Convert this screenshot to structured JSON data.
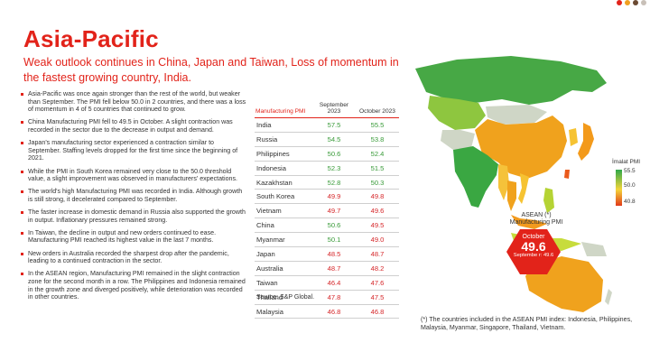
{
  "colors": {
    "accent": "#e2231a",
    "green_value": "#3a9b3a",
    "red_value": "#d6282b",
    "dots": [
      "#e2231a",
      "#f0a020",
      "#6b4a32",
      "#c8c0b8"
    ]
  },
  "title": "Asia-Pacific",
  "subtitle": "Weak outlook continues in China, Japan and Taiwan, Loss of momentum in the fastest growing country, India.",
  "bullets": [
    "Asia-Pacific was once again stronger than the rest of the world, but weaker than September. The PMI fell below 50.0 in 2 countries, and there was a loss of momentum in 4 of 5 countries that continued to grow.",
    "China Manufacturing PMI fell to 49.5 in October. A slight contraction was recorded in the sector due to the decrease in output and demand.",
    "Japan's manufacturing sector experienced a contraction similar to September. Staffing levels dropped for the first time since the beginning of 2021.",
    "While the PMI in South Korea remained very close to the 50.0 threshold value, a slight improvement was observed in manufacturers' expectations.",
    "The world's high Manufacturing PMI was recorded in India. Although growth is still strong, it decelerated compared to September.",
    "The faster increase in domestic demand in Russia also supported the growth in output. Inflationary pressures remained strong.",
    "In Taiwan, the decline in output and new orders continued to ease. Manufacturing PMI reached its highest value in the last 7 months.",
    "New orders in Australia recorded the sharpest drop after the pandemic, leading to a continued contraction in the sector.",
    "In the ASEAN region, Manufacturing PMI remained in the slight contraction zone for the second month in a row. The Philippines and Indonesia remained in the growth zone and diverged positively, while deterioration was recorded in other countries."
  ],
  "table": {
    "label_header": "Manufacturing PMI",
    "col1_header": "September 2023",
    "col2_header": "October 2023",
    "rows": [
      {
        "country": "India",
        "sep": "57.5",
        "oct": "55.5",
        "sep_color": "green",
        "oct_color": "green"
      },
      {
        "country": "Russia",
        "sep": "54.5",
        "oct": "53.8",
        "sep_color": "green",
        "oct_color": "green"
      },
      {
        "country": "Philippines",
        "sep": "50.6",
        "oct": "52.4",
        "sep_color": "green",
        "oct_color": "green"
      },
      {
        "country": "Indonesia",
        "sep": "52.3",
        "oct": "51.5",
        "sep_color": "green",
        "oct_color": "green"
      },
      {
        "country": "Kazakhstan",
        "sep": "52.8",
        "oct": "50.3",
        "sep_color": "green",
        "oct_color": "green"
      },
      {
        "country": "South Korea",
        "sep": "49.9",
        "oct": "49.8",
        "sep_color": "red",
        "oct_color": "red"
      },
      {
        "country": "Vietnam",
        "sep": "49.7",
        "oct": "49.6",
        "sep_color": "red",
        "oct_color": "red"
      },
      {
        "country": "China",
        "sep": "50.6",
        "oct": "49.5",
        "sep_color": "green",
        "oct_color": "red"
      },
      {
        "country": "Myanmar",
        "sep": "50.1",
        "oct": "49.0",
        "sep_color": "green",
        "oct_color": "red"
      },
      {
        "country": "Japan",
        "sep": "48.5",
        "oct": "48.7",
        "sep_color": "red",
        "oct_color": "red"
      },
      {
        "country": "Australia",
        "sep": "48.7",
        "oct": "48.2",
        "sep_color": "red",
        "oct_color": "red"
      },
      {
        "country": "Taiwan",
        "sep": "46.4",
        "oct": "47.6",
        "sep_color": "red",
        "oct_color": "red"
      },
      {
        "country": "Thailand",
        "sep": "47.8",
        "oct": "47.5",
        "sep_color": "red",
        "oct_color": "red"
      },
      {
        "country": "Malaysia",
        "sep": "46.8",
        "oct": "46.8",
        "sep_color": "red",
        "oct_color": "red"
      }
    ]
  },
  "source": "Source: S&P Global.",
  "legend": {
    "title": "İmalat PMI",
    "max": "55.5",
    "mid": "50.0",
    "min": "40.8"
  },
  "asean": {
    "label": "ASEAN (*) Manufacturing PMI",
    "month": "October",
    "value": "49.6",
    "prev": "Septembe r: 49.6"
  },
  "footnote": "(*) The countries included in the ASEAN PMI index: Indonesia, Philippines, Malaysia, Myanmar, Singapore, Thailand, Vietnam."
}
